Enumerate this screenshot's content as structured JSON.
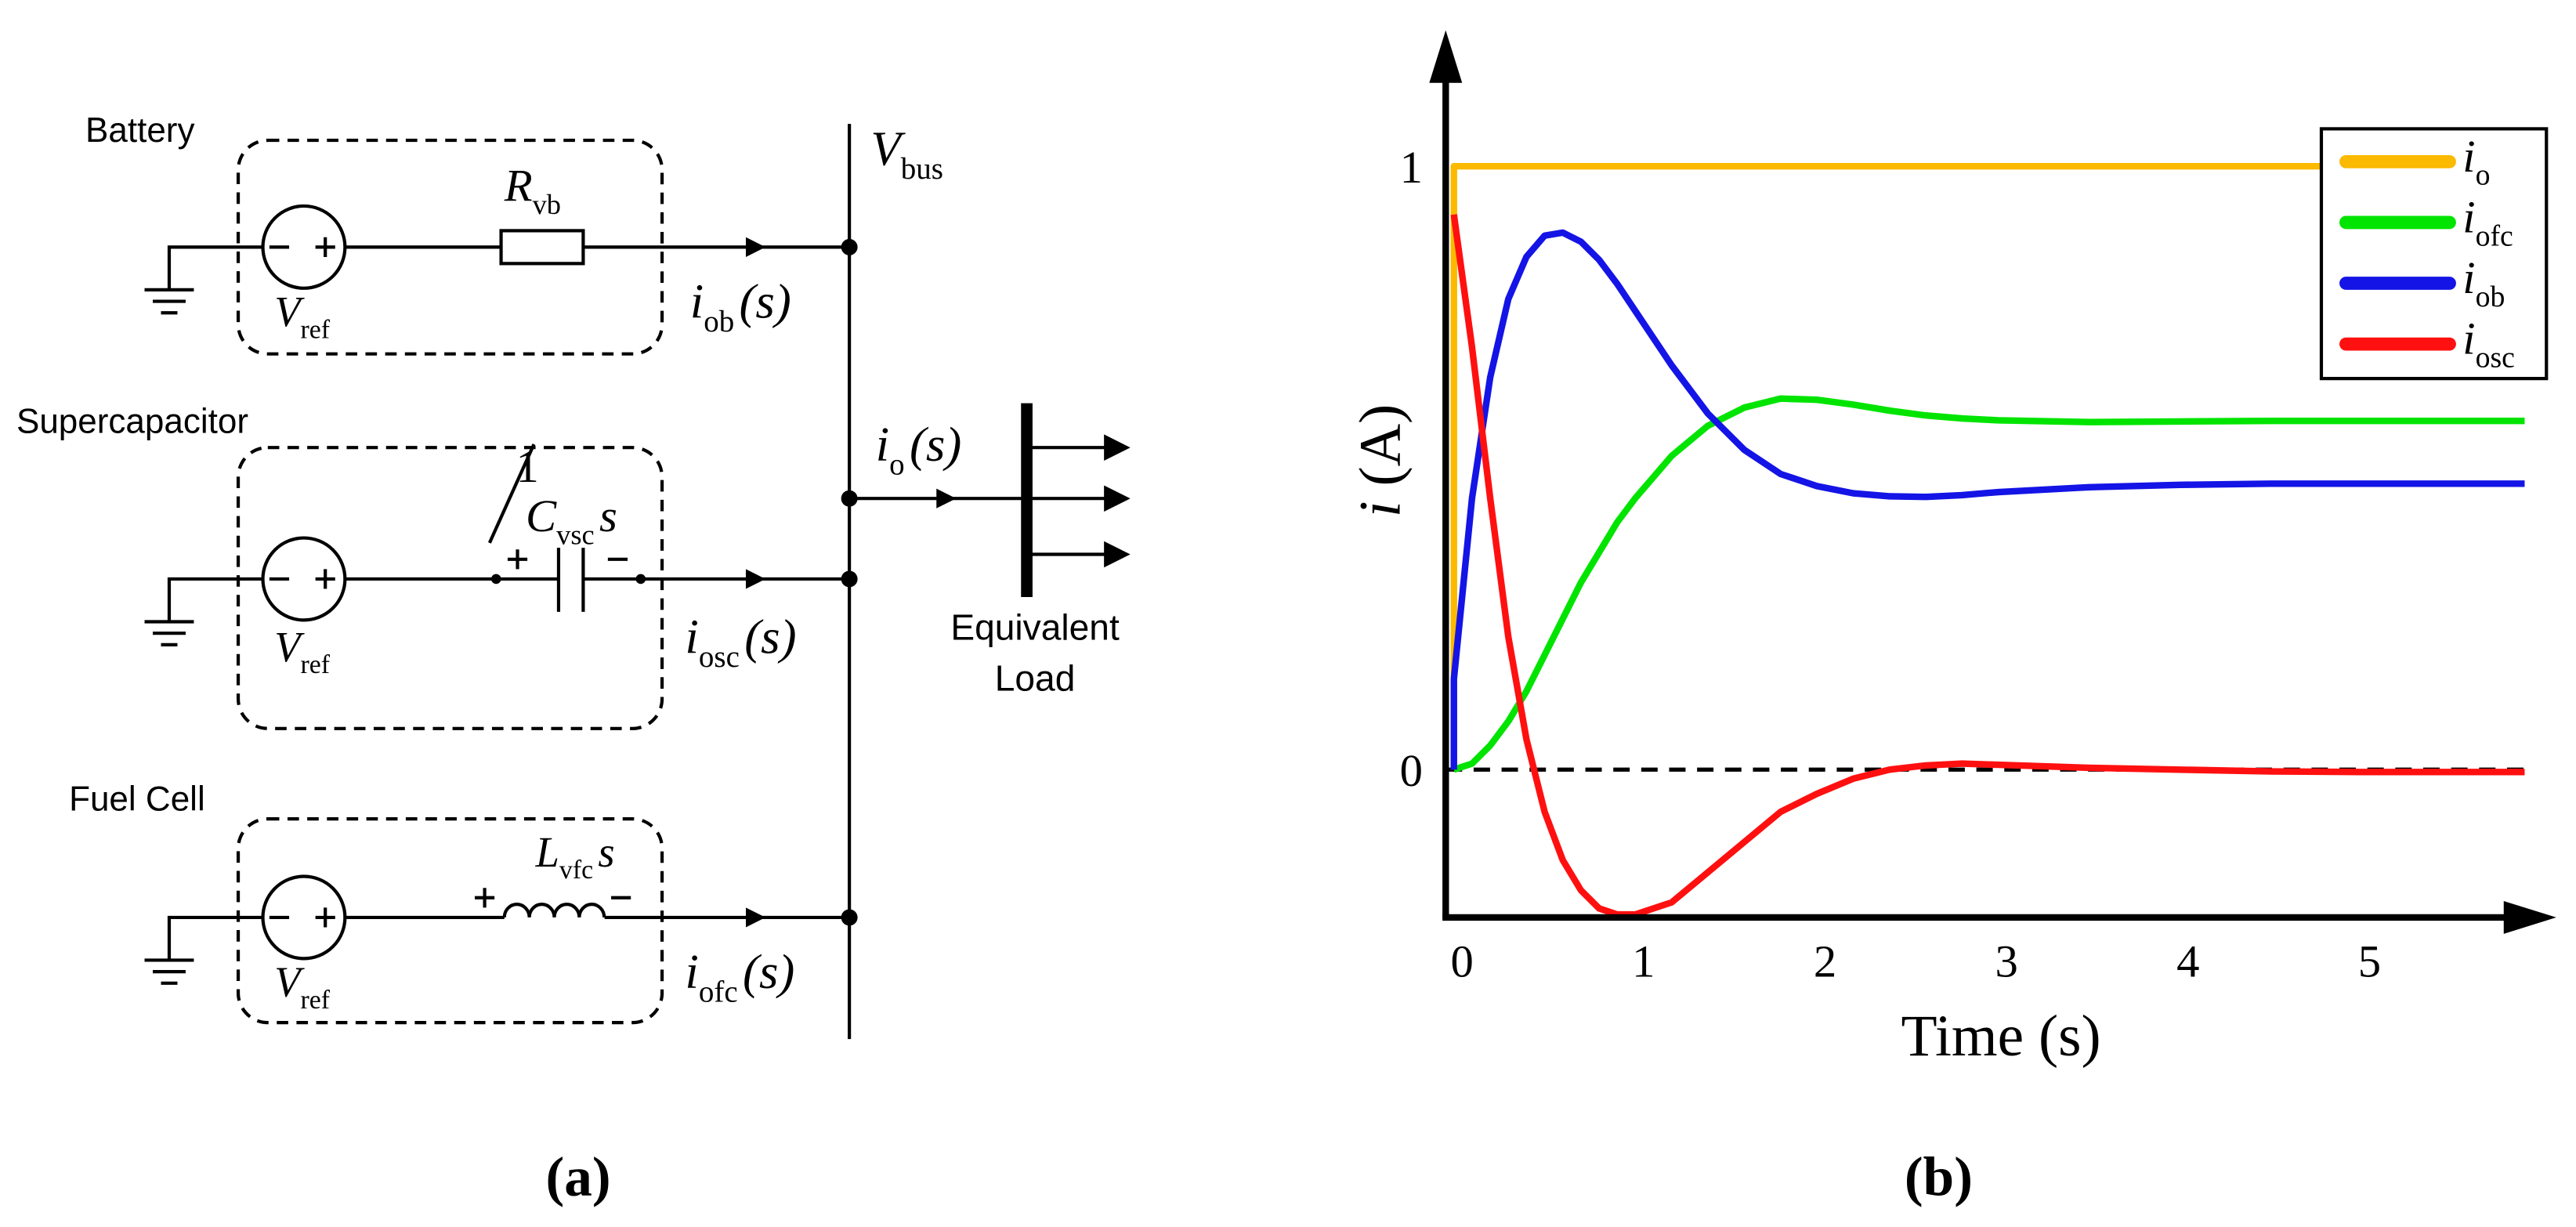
{
  "circuit": {
    "labels": {
      "battery": "Battery",
      "supercapacitor": "Supercapacitor",
      "fuel_cell": "Fuel Cell",
      "equivalent": "Equivalent",
      "load": "Load"
    },
    "v_bus": {
      "main": "V",
      "sub": "bus"
    },
    "r_vb": {
      "main": "R",
      "sub": "vb"
    },
    "v_ref": [
      {
        "main": "V",
        "sub": "ref"
      },
      {
        "main": "V",
        "sub": "ref"
      },
      {
        "main": "V",
        "sub": "ref"
      }
    ],
    "i_ob": {
      "main": "i",
      "sub": "ob",
      "tail": "(s)"
    },
    "i_osc": {
      "main": "i",
      "sub": "osc",
      "tail": "(s)"
    },
    "i_ofc": {
      "main": "i",
      "sub": "ofc",
      "tail": "(s)"
    },
    "i_o": {
      "main": "i",
      "sub": "o",
      "tail": "(s)"
    },
    "c_vsc": {
      "num": "1",
      "main": "C",
      "sub": "vsc",
      "tail": "s"
    },
    "l_vfc": {
      "main": "L",
      "sub": "vfc",
      "tail": "s"
    }
  },
  "captions": [
    "(a)",
    "(b)"
  ],
  "chart_data": {
    "type": "line",
    "x_label": "Time (s)",
    "y_label": "i (A)",
    "x": [
      0,
      0,
      0.1,
      0.2,
      0.3,
      0.4,
      0.5,
      0.6,
      0.7,
      0.8,
      0.9,
      1,
      1.2,
      1.4,
      1.6,
      1.8,
      2,
      2.2,
      2.4,
      2.6,
      2.8,
      3,
      3.5,
      4,
      4.5,
      5,
      5.5,
      5.9
    ],
    "series": [
      {
        "name": "io",
        "color": "#fbb900",
        "values": [
          0,
          1,
          1,
          1,
          1,
          1,
          1,
          1,
          1,
          1,
          1,
          1,
          1,
          1,
          1,
          1,
          1,
          1,
          1,
          1,
          1,
          1,
          1,
          1,
          1,
          1,
          1,
          1
        ]
      },
      {
        "name": "iofc",
        "color": "#00e400",
        "values": [
          0,
          0,
          0.01,
          0.04,
          0.08,
          0.13,
          0.19,
          0.25,
          0.31,
          0.36,
          0.41,
          0.45,
          0.52,
          0.57,
          0.6,
          0.615,
          0.613,
          0.605,
          0.595,
          0.587,
          0.582,
          0.579,
          0.576,
          0.577,
          0.578,
          0.578,
          0.578,
          0.578
        ]
      },
      {
        "name": "iob",
        "color": "#1414e6",
        "values": [
          0,
          0.15,
          0.45,
          0.65,
          0.78,
          0.85,
          0.885,
          0.89,
          0.875,
          0.845,
          0.805,
          0.76,
          0.67,
          0.59,
          0.53,
          0.49,
          0.47,
          0.458,
          0.453,
          0.452,
          0.455,
          0.46,
          0.468,
          0.472,
          0.474,
          0.474,
          0.474,
          0.474
        ]
      },
      {
        "name": "iosc",
        "color": "#ff1010",
        "values": [
          0.92,
          0.92,
          0.7,
          0.45,
          0.22,
          0.05,
          -0.07,
          -0.15,
          -0.2,
          -0.23,
          -0.24,
          -0.24,
          -0.22,
          -0.17,
          -0.12,
          -0.07,
          -0.04,
          -0.015,
          0,
          0.007,
          0.01,
          0.008,
          0.003,
          0,
          -0.003,
          -0.004,
          -0.004,
          -0.004
        ]
      }
    ],
    "xlim": [
      -0.045,
      6.02
    ],
    "ylim": [
      -0.245,
      1.22
    ],
    "xticks": [
      0,
      1,
      2,
      3,
      4,
      5
    ],
    "yticks": [
      0,
      1
    ],
    "zero_line": "dashed",
    "legend": "upper-right"
  }
}
